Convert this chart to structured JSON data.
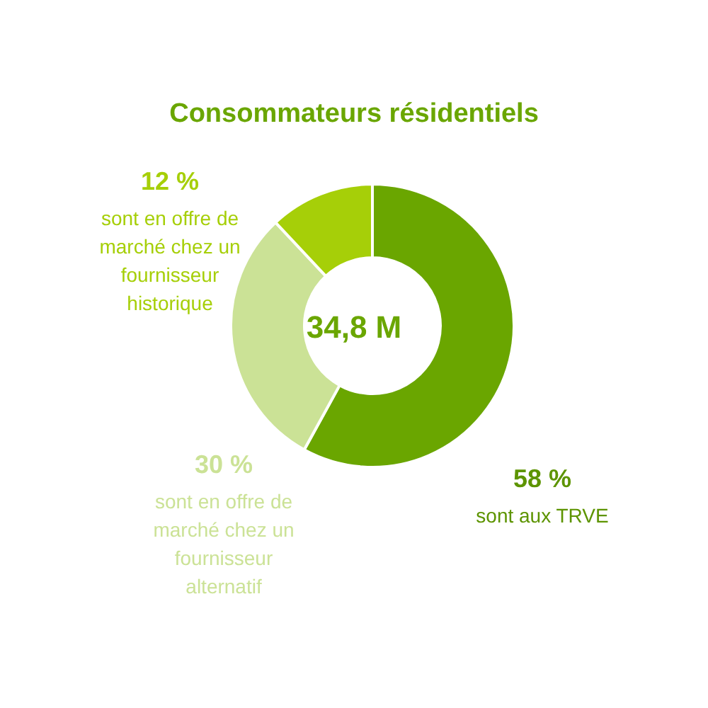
{
  "chart_data": {
    "type": "donut",
    "title": "Consommateurs résidentiels",
    "categories": [
      "sont aux TRVE",
      "sont en offre de marché chez un fournisseur alternatif",
      "sont en offre de marché chez un fournisseur historique"
    ],
    "values": [
      58,
      30,
      12
    ],
    "value_labels": [
      "58 %",
      "30 %",
      "12 %"
    ],
    "colors": [
      "#6aa600",
      "#cbe296",
      "#a6cf08"
    ],
    "annotations": [
      "34,8 M"
    ],
    "legend": false
  }
}
